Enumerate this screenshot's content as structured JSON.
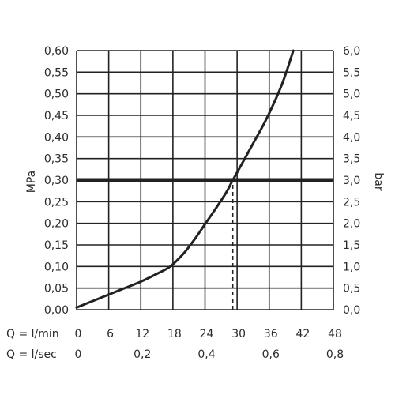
{
  "chart_data": {
    "type": "line",
    "title": "",
    "ylabel_left": "MPa",
    "ylabel_right": "bar",
    "x_rows": [
      {
        "label": "Q = l/min",
        "ticks": [
          {
            "value": 0,
            "label": "0"
          },
          {
            "value": 6,
            "label": "6"
          },
          {
            "value": 12,
            "label": "12"
          },
          {
            "value": 18,
            "label": "18"
          },
          {
            "value": 24,
            "label": "24"
          },
          {
            "value": 30,
            "label": "30"
          },
          {
            "value": 36,
            "label": "36"
          },
          {
            "value": 42,
            "label": "42"
          },
          {
            "value": 48,
            "label": "48"
          }
        ]
      },
      {
        "label": "Q = l/sec",
        "ticks": [
          {
            "value": 0,
            "label": "0"
          },
          {
            "value": 12,
            "label": "0,2"
          },
          {
            "value": 24,
            "label": "0,4"
          },
          {
            "value": 36,
            "label": "0,6"
          },
          {
            "value": 48,
            "label": "0,8"
          }
        ]
      }
    ],
    "xlim": [
      0,
      48
    ],
    "ylim": [
      0,
      0.6
    ],
    "x_grid": [
      0,
      6,
      12,
      18,
      24,
      30,
      36,
      42,
      48
    ],
    "y_ticks_left": [
      {
        "value": 0.0,
        "label": "0,00"
      },
      {
        "value": 0.05,
        "label": "0,05"
      },
      {
        "value": 0.1,
        "label": "0,10"
      },
      {
        "value": 0.15,
        "label": "0,15"
      },
      {
        "value": 0.2,
        "label": "0,20"
      },
      {
        "value": 0.25,
        "label": "0,25"
      },
      {
        "value": 0.3,
        "label": "0,30"
      },
      {
        "value": 0.35,
        "label": "0,35"
      },
      {
        "value": 0.4,
        "label": "0,40"
      },
      {
        "value": 0.45,
        "label": "0,45"
      },
      {
        "value": 0.5,
        "label": "0,50"
      },
      {
        "value": 0.55,
        "label": "0,55"
      },
      {
        "value": 0.6,
        "label": "0,60"
      }
    ],
    "y_ticks_right": [
      {
        "value": 0.0,
        "label": "0,0"
      },
      {
        "value": 0.05,
        "label": "0,5"
      },
      {
        "value": 0.1,
        "label": "1,0"
      },
      {
        "value": 0.15,
        "label": "1,5"
      },
      {
        "value": 0.2,
        "label": "2,0"
      },
      {
        "value": 0.25,
        "label": "2,5"
      },
      {
        "value": 0.3,
        "label": "3,0"
      },
      {
        "value": 0.35,
        "label": "3,5"
      },
      {
        "value": 0.4,
        "label": "4,0"
      },
      {
        "value": 0.45,
        "label": "4,5"
      },
      {
        "value": 0.5,
        "label": "5,0"
      },
      {
        "value": 0.55,
        "label": "5,5"
      },
      {
        "value": 0.6,
        "label": "6,0"
      }
    ],
    "grid": true,
    "series": [
      {
        "x": [
          0,
          4,
          8,
          12,
          15,
          17.5,
          20,
          22,
          24,
          26,
          28,
          29.2,
          31,
          33,
          35,
          36.5,
          38,
          39.2,
          40.5
        ],
        "y": [
          0.005,
          0.025,
          0.045,
          0.065,
          0.083,
          0.1,
          0.13,
          0.162,
          0.198,
          0.234,
          0.272,
          0.3,
          0.34,
          0.385,
          0.43,
          0.468,
          0.51,
          0.55,
          0.6
        ],
        "color": "#222222"
      }
    ],
    "reference_lines": [
      {
        "orientation": "horizontal",
        "y": 0.3,
        "style": "solid-thick",
        "color": "#222222"
      },
      {
        "orientation": "vertical",
        "x": 29.2,
        "y_from": 0,
        "y_to": 0.3,
        "style": "dashed",
        "color": "#222222"
      }
    ]
  }
}
